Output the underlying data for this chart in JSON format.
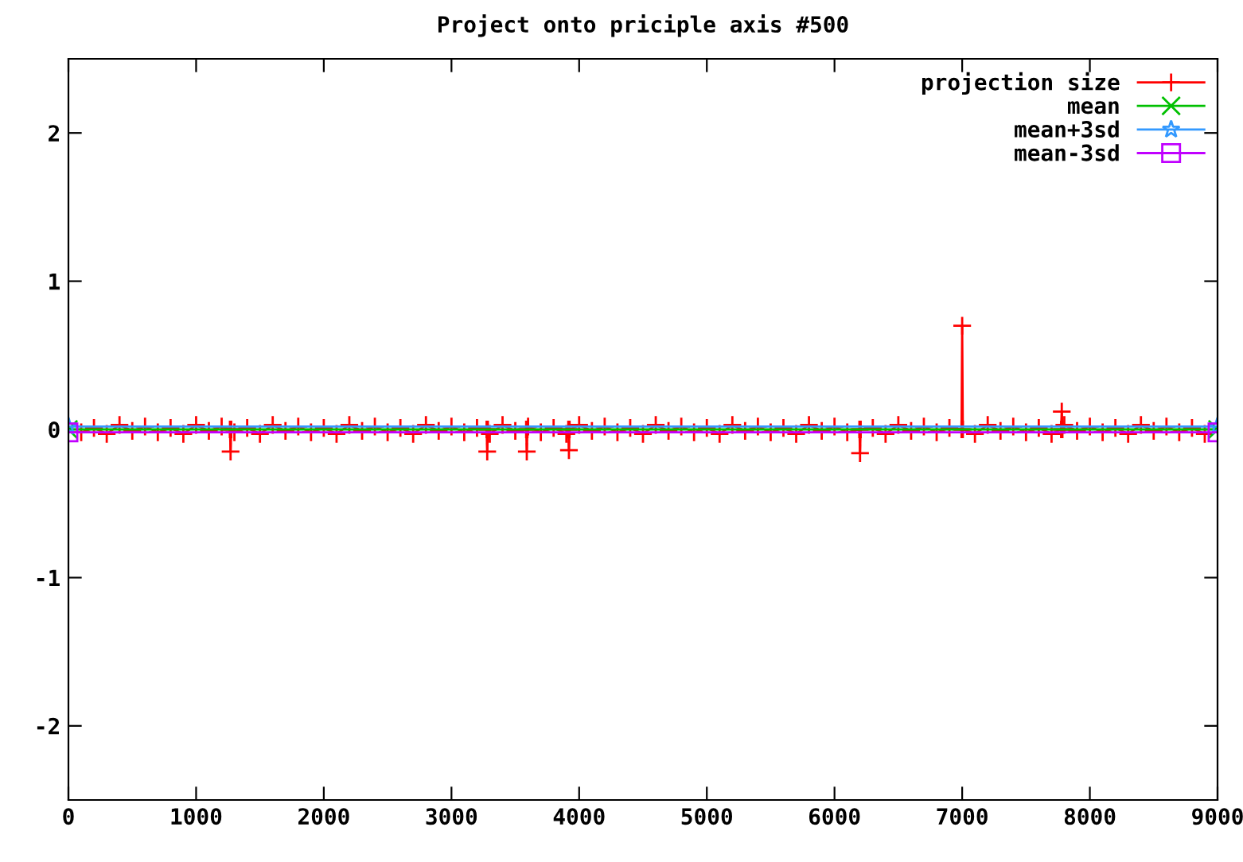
{
  "chart_data": {
    "type": "line",
    "title": "Project onto priciple axis #500",
    "xlim": [
      0,
      9000
    ],
    "xticks": [
      0,
      1000,
      2000,
      3000,
      4000,
      5000,
      6000,
      7000,
      8000,
      9000
    ],
    "ylim": [
      -2.5,
      2.5
    ],
    "yticks": [
      -2,
      -1,
      0,
      1,
      2
    ],
    "grid": false,
    "legend": "top right",
    "series": [
      {
        "name": "projection size",
        "color": "#ff0000",
        "marker": "cross",
        "x": [
          100,
          200,
          300,
          400,
          500,
          600,
          700,
          800,
          900,
          1000,
          1100,
          1200,
          1265,
          1270,
          1275,
          1300,
          1400,
          1500,
          1600,
          1700,
          1800,
          1900,
          2000,
          2100,
          2200,
          2300,
          2400,
          2500,
          2600,
          2700,
          2800,
          2900,
          3000,
          3100,
          3200,
          3275,
          3280,
          3285,
          3300,
          3400,
          3500,
          3585,
          3590,
          3595,
          3600,
          3700,
          3800,
          3900,
          3915,
          3920,
          3925,
          4000,
          4100,
          4200,
          4300,
          4400,
          4500,
          4600,
          4700,
          4800,
          4900,
          5000,
          5100,
          5200,
          5300,
          5400,
          5500,
          5600,
          5700,
          5800,
          5900,
          6000,
          6100,
          6195,
          6200,
          6205,
          6300,
          6400,
          6500,
          6600,
          6700,
          6800,
          6900,
          6995,
          7000,
          7005,
          7100,
          7200,
          7300,
          7400,
          7500,
          7600,
          7700,
          7775,
          7780,
          7785,
          7800,
          7900,
          8000,
          8100,
          8200,
          8300,
          8400,
          8500,
          8600,
          8700,
          8800,
          8900
        ],
        "values": [
          -0.02,
          0.01,
          -0.03,
          0.03,
          -0.01,
          0.02,
          -0.02,
          0.01,
          -0.03,
          0.03,
          -0.01,
          0.02,
          0,
          -0.15,
          0,
          -0.02,
          0.01,
          -0.03,
          0.03,
          -0.01,
          0.02,
          -0.02,
          0.01,
          -0.03,
          0.03,
          -0.01,
          0.02,
          -0.02,
          0.01,
          -0.03,
          0.03,
          -0.01,
          0.02,
          -0.02,
          0.01,
          0,
          -0.15,
          0,
          -0.03,
          0.03,
          -0.01,
          0,
          -0.15,
          0,
          0.02,
          -0.02,
          0.01,
          -0.03,
          0,
          -0.14,
          0,
          0.03,
          -0.01,
          0.02,
          -0.02,
          0.01,
          -0.03,
          0.03,
          -0.01,
          0.02,
          -0.02,
          0.01,
          -0.03,
          0.03,
          -0.01,
          0.02,
          -0.02,
          0.01,
          -0.03,
          0.03,
          -0.01,
          0.02,
          -0.02,
          0,
          -0.16,
          0,
          0.01,
          -0.03,
          0.03,
          -0.01,
          0.02,
          -0.02,
          0.01,
          0,
          0.7,
          0,
          -0.03,
          0.03,
          -0.01,
          0.02,
          -0.02,
          0.01,
          -0.03,
          0,
          0.12,
          0,
          0.03,
          -0.01,
          0.02,
          -0.02,
          0.01,
          -0.03,
          0.03,
          -0.01,
          0.02,
          -0.02,
          0.01,
          -0.03
        ]
      },
      {
        "name": "mean",
        "color": "#00c000",
        "marker": "x",
        "x": [
          0,
          9000
        ],
        "values": [
          0,
          0
        ]
      },
      {
        "name": "mean+3sd",
        "color": "#3399ff",
        "marker": "star",
        "x": [
          0,
          9000
        ],
        "values": [
          0.02,
          0.02
        ]
      },
      {
        "name": "mean-3sd",
        "color": "#c000ff",
        "marker": "square",
        "x": [
          0,
          9000
        ],
        "values": [
          -0.02,
          -0.02
        ]
      }
    ]
  }
}
